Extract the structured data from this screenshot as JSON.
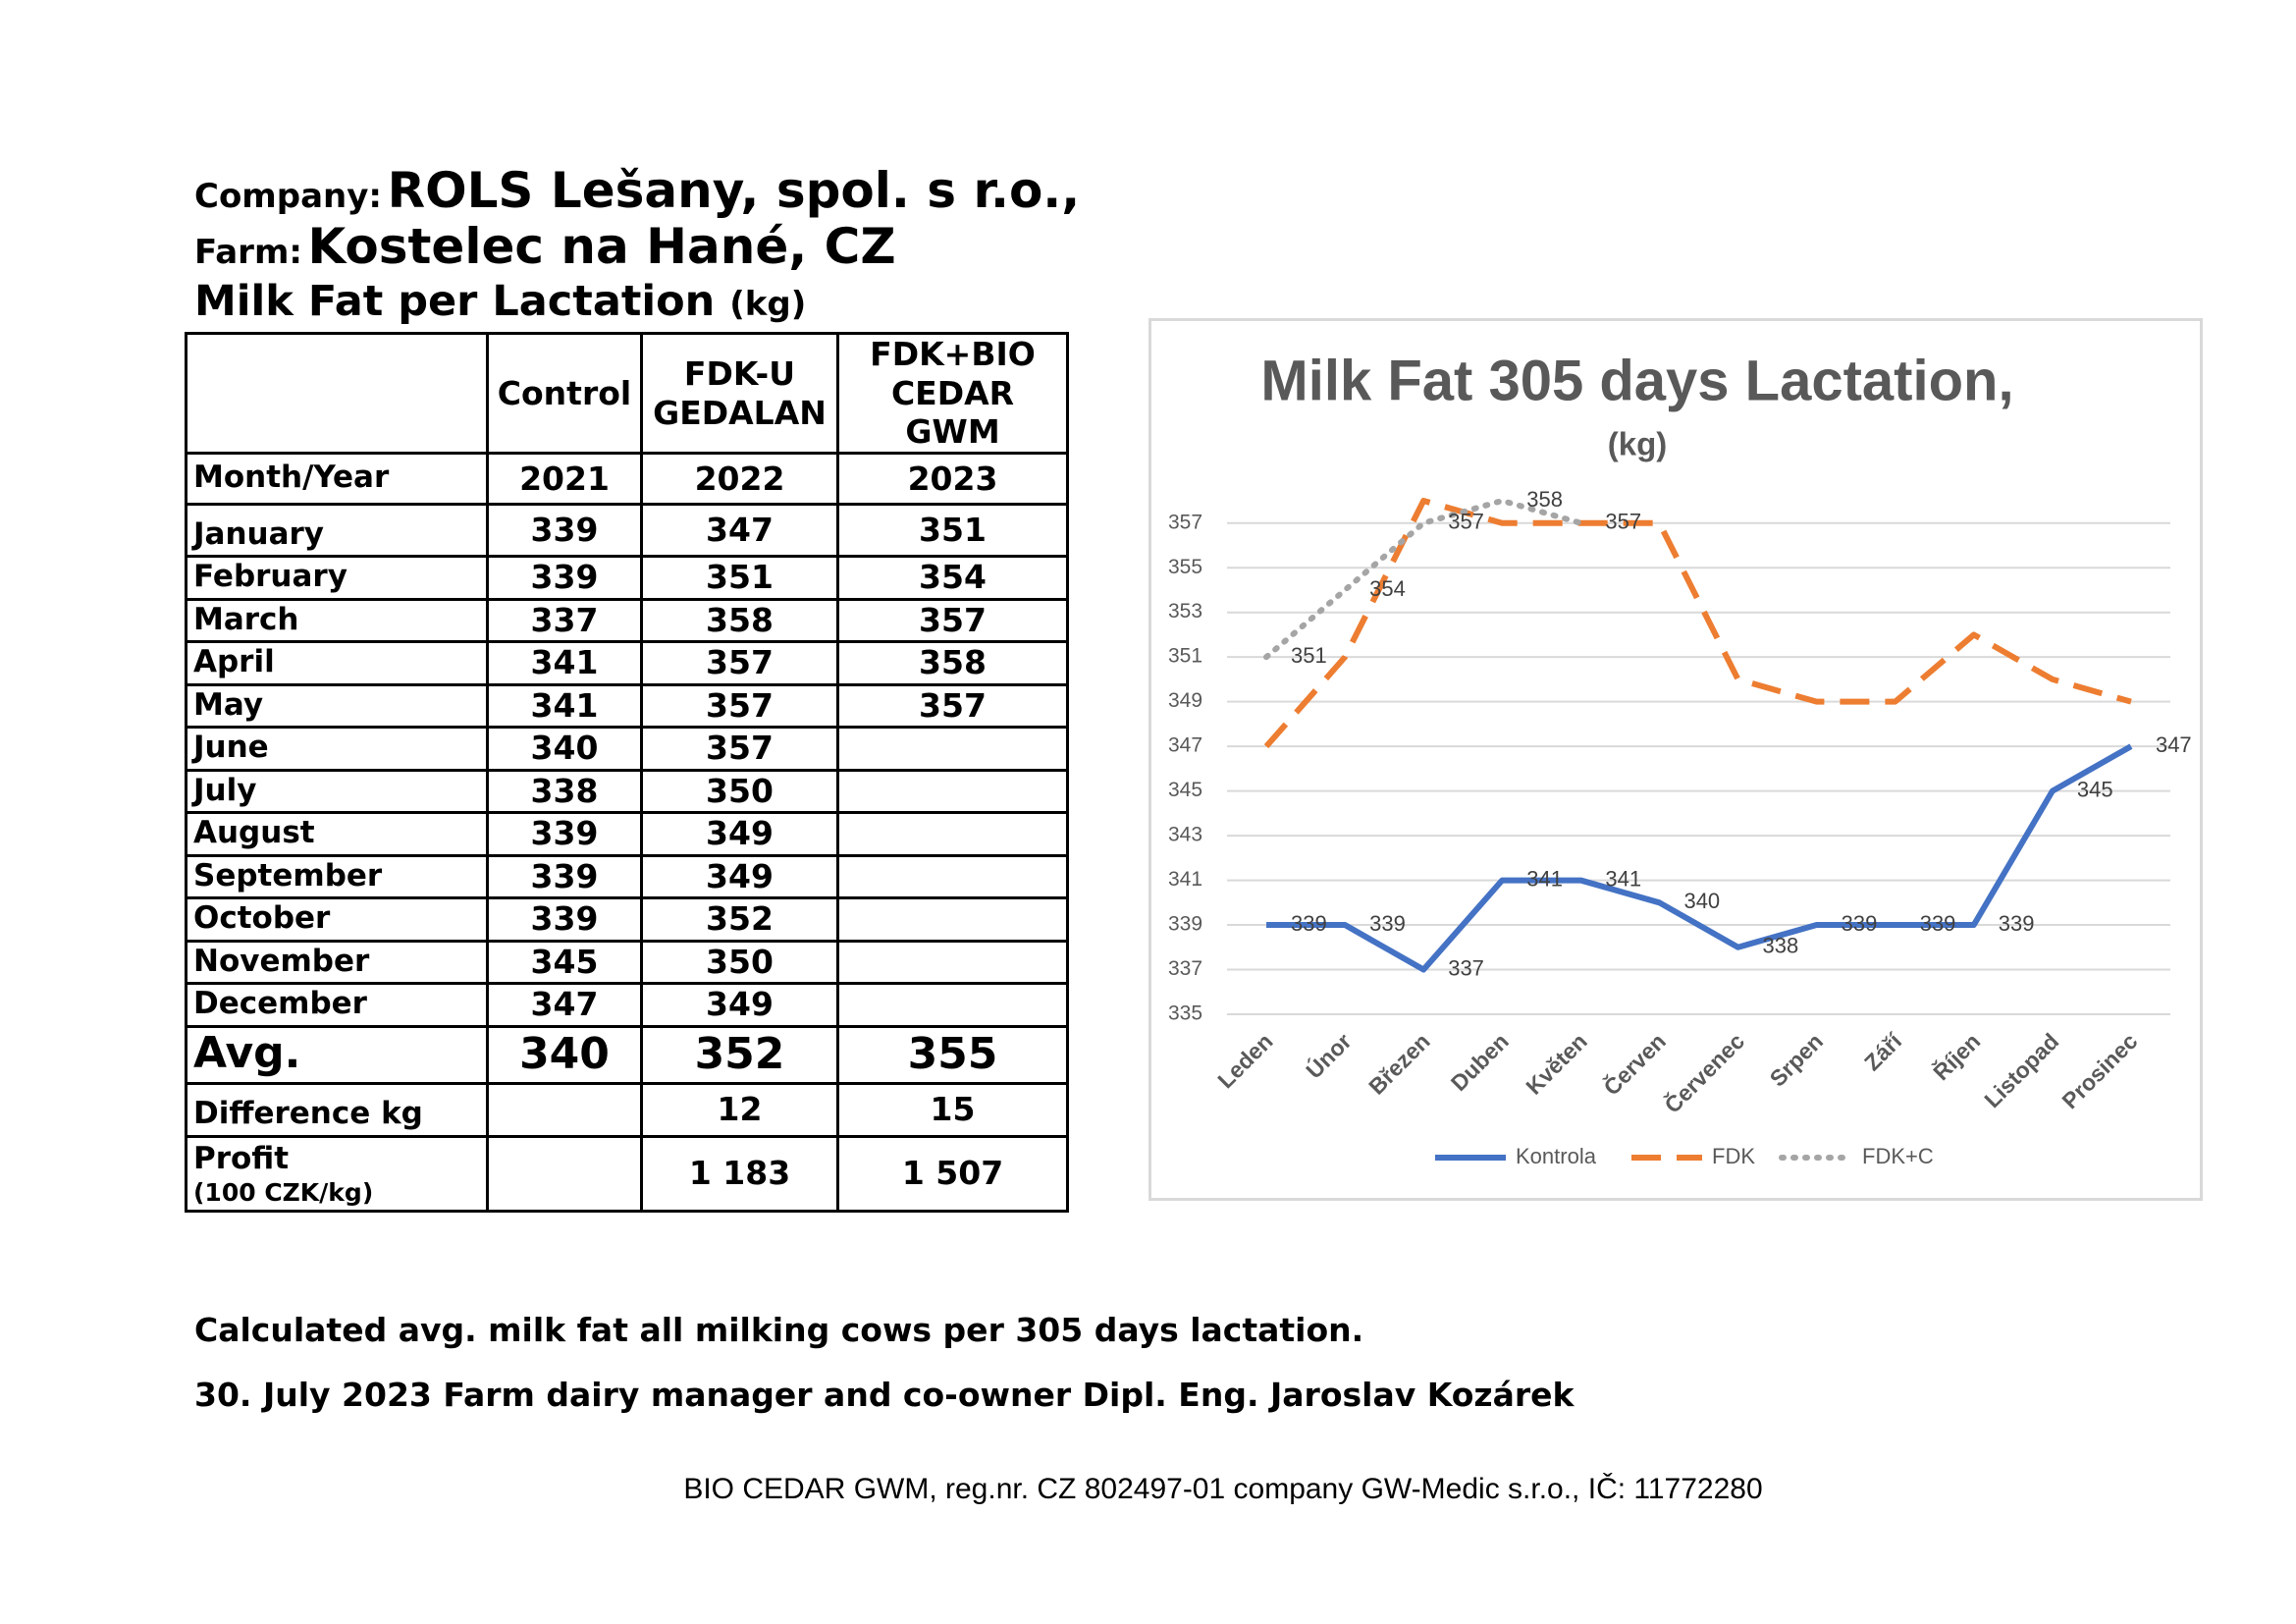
{
  "header": {
    "company_label": "Company:",
    "company": "ROLS Lešany, spol. s r.o.,",
    "farm_label": "Farm:",
    "farm": "Kostelec na Hané, CZ",
    "subject": "Milk Fat per Lactation",
    "subject_unit": "(kg)"
  },
  "table": {
    "header": [
      null,
      "Control",
      "FDK-U\nGEDALAN",
      "FDK+BIO\nCEDAR\nGWM"
    ],
    "years": [
      "Month/Year",
      "2021",
      "2022",
      "2023"
    ],
    "rows": [
      [
        "January",
        339,
        347,
        351
      ],
      [
        "February",
        339,
        351,
        354
      ],
      [
        "March",
        337,
        358,
        357
      ],
      [
        "April",
        341,
        357,
        358
      ],
      [
        "May",
        341,
        357,
        357
      ],
      [
        "June",
        340,
        357,
        null
      ],
      [
        "July",
        338,
        350,
        null
      ],
      [
        "August",
        339,
        349,
        null
      ],
      [
        "September",
        339,
        349,
        null
      ],
      [
        "October",
        339,
        352,
        null
      ],
      [
        "November",
        345,
        350,
        null
      ],
      [
        "December",
        347,
        349,
        null
      ]
    ],
    "avg": [
      "Avg.",
      340,
      352,
      355
    ],
    "difference": [
      "Difference kg",
      null,
      12,
      15
    ],
    "profit": [
      "Profit",
      null,
      "1 183",
      "1 507"
    ],
    "profit_note": "(100 CZK/kg)"
  },
  "chart_data": {
    "type": "line",
    "title": "Milk Fat 305 days Lactation,",
    "subtitle": "(kg)",
    "categories": [
      "Leden",
      "Únor",
      "Březen",
      "Duben",
      "Květen",
      "Červen",
      "Červenec",
      "Srpen",
      "Září",
      "Říjen",
      "Listopad",
      "Prosinec"
    ],
    "series": [
      {
        "name": "Kontrola",
        "color": "#4472c4",
        "dash": "solid",
        "data_labels": true,
        "values": [
          339,
          339,
          337,
          341,
          341,
          340,
          338,
          339,
          339,
          339,
          345,
          347
        ]
      },
      {
        "name": "FDK",
        "color": "#ed7d31",
        "dash": "dashed",
        "data_labels": false,
        "values": [
          347,
          351,
          358,
          357,
          357,
          357,
          350,
          349,
          349,
          352,
          350,
          349
        ]
      },
      {
        "name": "FDK+C",
        "color": "#a5a5a5",
        "dash": "dotted",
        "data_labels": true,
        "values": [
          351,
          354,
          357,
          358,
          357,
          null,
          null,
          null,
          null,
          null,
          null,
          null
        ]
      }
    ],
    "ylim": [
      335,
      358
    ],
    "yticks": [
      335,
      337,
      339,
      341,
      343,
      345,
      347,
      349,
      351,
      353,
      355,
      357
    ],
    "grid": true,
    "legend": "bottom"
  },
  "footer": {
    "note": "Calculated avg. milk fat all milking cows per 305 days lactation.",
    "signature": "30. July 2023 Farm dairy manager and co-owner Dipl. Eng. Jaroslav Kozárek",
    "company_line": "BIO CEDAR GWM, reg.nr. CZ 802497-01 company GW-Medic s.r.o., IČ: 11772280"
  }
}
